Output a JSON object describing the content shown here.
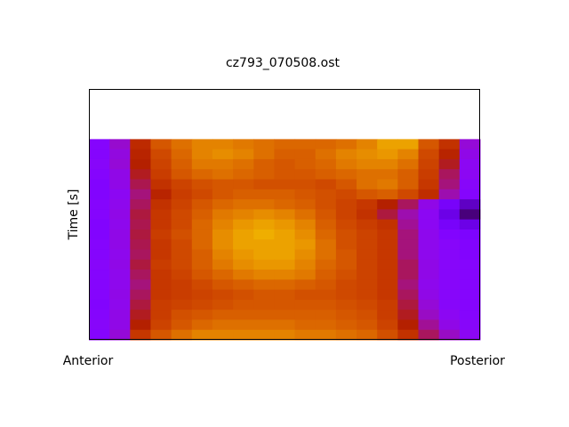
{
  "chart_data": {
    "type": "heatmap",
    "title": "cz793_070508.ost",
    "y_label": "Time [s]",
    "x_start_label": "Anterior",
    "x_end_label": "Posterior",
    "colormap": "gnuplot",
    "xlim": [
      0,
      19
    ],
    "ylim": [
      0,
      25
    ],
    "z": [
      [
        0.27,
        0.35,
        0.55,
        0.7,
        0.76,
        0.8,
        0.8,
        0.78,
        0.76,
        0.74,
        0.74,
        0.74,
        0.76,
        0.8,
        0.86,
        0.86,
        0.7,
        0.58,
        0.34
      ],
      [
        0.27,
        0.33,
        0.52,
        0.66,
        0.74,
        0.8,
        0.82,
        0.8,
        0.76,
        0.72,
        0.72,
        0.76,
        0.8,
        0.82,
        0.84,
        0.8,
        0.66,
        0.52,
        0.32
      ],
      [
        0.28,
        0.34,
        0.5,
        0.64,
        0.72,
        0.78,
        0.78,
        0.76,
        0.72,
        0.7,
        0.72,
        0.74,
        0.78,
        0.8,
        0.8,
        0.76,
        0.64,
        0.48,
        0.3
      ],
      [
        0.27,
        0.32,
        0.48,
        0.62,
        0.7,
        0.74,
        0.76,
        0.74,
        0.72,
        0.7,
        0.7,
        0.72,
        0.74,
        0.76,
        0.76,
        0.72,
        0.62,
        0.44,
        0.3
      ],
      [
        0.26,
        0.32,
        0.45,
        0.58,
        0.64,
        0.68,
        0.7,
        0.7,
        0.68,
        0.68,
        0.68,
        0.66,
        0.7,
        0.76,
        0.78,
        0.72,
        0.6,
        0.42,
        0.28
      ],
      [
        0.26,
        0.3,
        0.42,
        0.52,
        0.62,
        0.66,
        0.7,
        0.72,
        0.72,
        0.72,
        0.7,
        0.68,
        0.66,
        0.7,
        0.72,
        0.66,
        0.56,
        0.38,
        0.27
      ],
      [
        0.27,
        0.31,
        0.44,
        0.58,
        0.64,
        0.7,
        0.74,
        0.76,
        0.76,
        0.74,
        0.72,
        0.68,
        0.64,
        0.6,
        0.5,
        0.44,
        0.32,
        0.22,
        0.14
      ],
      [
        0.27,
        0.32,
        0.46,
        0.6,
        0.66,
        0.72,
        0.78,
        0.8,
        0.82,
        0.8,
        0.76,
        0.7,
        0.64,
        0.58,
        0.46,
        0.38,
        0.3,
        0.18,
        0.08
      ],
      [
        0.26,
        0.31,
        0.45,
        0.6,
        0.66,
        0.74,
        0.8,
        0.84,
        0.86,
        0.84,
        0.8,
        0.72,
        0.66,
        0.62,
        0.58,
        0.4,
        0.3,
        0.22,
        0.18
      ],
      [
        0.26,
        0.32,
        0.46,
        0.62,
        0.68,
        0.74,
        0.82,
        0.86,
        0.88,
        0.86,
        0.82,
        0.74,
        0.68,
        0.64,
        0.6,
        0.42,
        0.31,
        0.26,
        0.24
      ],
      [
        0.27,
        0.32,
        0.45,
        0.6,
        0.66,
        0.74,
        0.82,
        0.86,
        0.86,
        0.86,
        0.84,
        0.76,
        0.68,
        0.64,
        0.6,
        0.42,
        0.31,
        0.28,
        0.26
      ],
      [
        0.27,
        0.31,
        0.44,
        0.6,
        0.66,
        0.72,
        0.8,
        0.84,
        0.86,
        0.86,
        0.82,
        0.76,
        0.7,
        0.64,
        0.6,
        0.42,
        0.31,
        0.28,
        0.26
      ],
      [
        0.28,
        0.32,
        0.46,
        0.62,
        0.66,
        0.72,
        0.78,
        0.82,
        0.84,
        0.84,
        0.8,
        0.74,
        0.7,
        0.64,
        0.6,
        0.44,
        0.32,
        0.28,
        0.27
      ],
      [
        0.27,
        0.31,
        0.44,
        0.6,
        0.64,
        0.7,
        0.74,
        0.78,
        0.8,
        0.8,
        0.78,
        0.72,
        0.68,
        0.64,
        0.6,
        0.44,
        0.32,
        0.28,
        0.27
      ],
      [
        0.27,
        0.31,
        0.42,
        0.6,
        0.62,
        0.66,
        0.7,
        0.72,
        0.74,
        0.74,
        0.72,
        0.7,
        0.66,
        0.64,
        0.6,
        0.42,
        0.31,
        0.28,
        0.27
      ],
      [
        0.27,
        0.32,
        0.44,
        0.6,
        0.62,
        0.64,
        0.66,
        0.68,
        0.7,
        0.7,
        0.68,
        0.68,
        0.66,
        0.64,
        0.6,
        0.44,
        0.32,
        0.28,
        0.27
      ],
      [
        0.26,
        0.31,
        0.46,
        0.62,
        0.64,
        0.66,
        0.68,
        0.7,
        0.7,
        0.7,
        0.7,
        0.7,
        0.68,
        0.66,
        0.62,
        0.46,
        0.34,
        0.28,
        0.27
      ],
      [
        0.27,
        0.32,
        0.48,
        0.62,
        0.68,
        0.7,
        0.72,
        0.72,
        0.72,
        0.72,
        0.72,
        0.72,
        0.7,
        0.68,
        0.62,
        0.48,
        0.36,
        0.3,
        0.27
      ],
      [
        0.28,
        0.32,
        0.5,
        0.64,
        0.7,
        0.74,
        0.76,
        0.76,
        0.76,
        0.76,
        0.74,
        0.74,
        0.72,
        0.7,
        0.64,
        0.5,
        0.4,
        0.32,
        0.28
      ],
      [
        0.27,
        0.34,
        0.6,
        0.7,
        0.76,
        0.8,
        0.8,
        0.8,
        0.8,
        0.8,
        0.78,
        0.78,
        0.76,
        0.74,
        0.68,
        0.58,
        0.44,
        0.36,
        0.3
      ]
    ]
  }
}
